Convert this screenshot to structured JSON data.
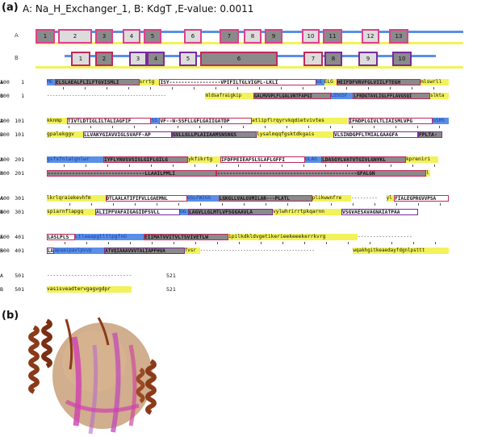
{
  "panel_a": {
    "label": "(a)",
    "title": "A: Na_H_Exchanger_1, B: KdgT ,E-value: 0.0011",
    "track_a_label": "A",
    "track_b_label": "B",
    "helices_a": [
      "1",
      "2",
      "3",
      "4",
      "5",
      "6",
      "7",
      "8",
      "9",
      "10",
      "11",
      "12",
      "13"
    ],
    "helices_b": [
      "1",
      "2",
      "3",
      "4",
      "5",
      "6",
      "7",
      "8",
      "9",
      "10"
    ]
  },
  "alignment": {
    "rows": [
      {
        "a_label": "A",
        "a_start": "1",
        "a_end": "100",
        "b_label": "B",
        "b_start": "1",
        "b_end": "100",
        "a_segments": [
          {
            "cls": "b",
            "t": "ME"
          },
          {
            "cls": "gp",
            "t": "ELSLAEALFLILFTGVISMLI"
          },
          {
            "cls": "y",
            "t": "srrtg"
          },
          {
            "cls": "w",
            "t": "ISY-----------------VPIFILTGLVIGPL-LKLI"
          },
          {
            "cls": "b",
            "t": "GE"
          },
          {
            "cls": "y",
            "t": "ELG"
          },
          {
            "cls": "gp",
            "t": "HEIFDFVRVFGLVIILFTEGH"
          },
          {
            "cls": "y",
            "t": "mlswrll"
          }
        ],
        "b_segments": [
          {
            "cls": "dash",
            "t": "-------------------------------------------"
          },
          {
            "cls": "y",
            "t": "mldsafraigkip"
          },
          {
            "cls": "gp",
            "t": "GALMVVPLFLGALVNTFAPGI"
          },
          {
            "cls": "b",
            "t": "LDSGSF"
          },
          {
            "cls": "gp",
            "t": "LFRDGTAVLIGLFFLAVGSQI"
          },
          {
            "cls": "y",
            "t": "slkta"
          }
        ]
      },
      {
        "a_label": "A",
        "a_start": "101",
        "a_end": "200",
        "b_label": "B",
        "b_start": "101",
        "b_end": "200",
        "a_segments": [
          {
            "cls": "y",
            "t": "kknmp"
          },
          {
            "cls": "w",
            "t": "TIVTLDTIGLILTALIAGFIF"
          },
          {
            "cls": "b",
            "t": "SS"
          },
          {
            "cls": "w",
            "t": "VF--N-SSFLLGFLGAIIGATDP"
          },
          {
            "cls": "y",
            "t": "atlipflrqyrvkqdietvivtes"
          },
          {
            "cls": "w",
            "t": "IFNDPLGIVLTLIAISMLVPG"
          },
          {
            "cls": "b",
            "t": "GSHS"
          }
        ],
        "b_segments": [
          {
            "cls": "y",
            "t": "gpalekggv"
          },
          {
            "cls": "wv",
            "t": "LLVAKYGIAVVIGLSVAFF-AP"
          },
          {
            "cls": "gv",
            "t": "GVLLGLLPLAIIAAMSNSNGS"
          },
          {
            "cls": "y",
            "t": "lysalmqqfgsktdkgais"
          },
          {
            "cls": "wv",
            "t": "VLSINDGPFLTMIALGAAGFA"
          },
          {
            "cls": "gv",
            "t": "FPLTA-"
          }
        ]
      },
      {
        "a_label": "A",
        "a_start": "201",
        "a_end": "300",
        "b_label": "B",
        "b_start": "201",
        "b_end": "300",
        "a_segments": [
          {
            "cls": "b",
            "t": "gsfsfnlalgnlwr"
          },
          {
            "cls": "gp",
            "t": "IYFLYNVSVSISLGIFLGILG"
          },
          {
            "cls": "y",
            "t": "ykfikrtg"
          },
          {
            "cls": "w",
            "t": "IFDFPEIEAFSLSLAFLGFFI"
          },
          {
            "cls": "b",
            "t": "GLAG"
          },
          {
            "cls": "gp",
            "t": "LDASGYLVATVTGIVLGNYKL"
          },
          {
            "cls": "y",
            "t": "kpreniri"
          }
        ],
        "b_segments": [
          {
            "cls": "gp",
            "t": "--------------------------------LLAAILPMLI"
          },
          {
            "cls": "gp",
            "t": "----------------------------------------------GFALGN"
          },
          {
            "cls": "y",
            "t": "l"
          }
        ]
      },
      {
        "a_label": "A",
        "a_start": "301",
        "a_end": "400",
        "b_label": "B",
        "b_start": "301",
        "b_end": "400",
        "a_segments": [
          {
            "cls": "y",
            "t": "lkrlqraiekevhfm"
          },
          {
            "cls": "w",
            "t": "DTLAALATIFIFVLLGAEMNL"
          },
          {
            "cls": "b",
            "t": "GSLFWIGG"
          },
          {
            "cls": "gp",
            "t": "LGKGLLVALGVMILAR---PLATL"
          },
          {
            "cls": "y",
            "t": "plikwwnfre"
          },
          {
            "cls": "dash",
            "t": "---------"
          },
          {
            "cls": "y",
            "t": "yl"
          },
          {
            "cls": "w",
            "t": "FIALEGPRGVVPSA"
          }
        ],
        "b_segments": [
          {
            "cls": "y",
            "t": "spiarnflapgq"
          },
          {
            "cls": "wv",
            "t": "ALIIPFVAFAIGAGIDFSVLL"
          },
          {
            "cls": "b",
            "t": "GG"
          },
          {
            "cls": "gv",
            "t": "LAGVLLGLMTLVFSGGAAVLA"
          },
          {
            "cls": "y",
            "t": "vylwhrirrtpkqarnn"
          },
          {
            "cls": "wv",
            "t": "VSGVAESAVAGNAIATPAA"
          }
        ]
      },
      {
        "a_label": "A",
        "a_start": "401",
        "a_end": "500",
        "b_label": "B",
        "b_start": "401",
        "b_end": "500",
        "a_segments": [
          {
            "cls": "w",
            "t": "LASLPLS"
          },
          {
            "cls": "b",
            "t": "LtlaaapgtltlpgfnG"
          },
          {
            "cls": "gp",
            "t": "EIIMATVVITVLTSVIVETLW"
          },
          {
            "cls": "y",
            "t": "ipilkdkldvgetikerieekeeekerrkvrg"
          },
          {
            "cls": "dash",
            "t": "------------------"
          }
        ],
        "b_segments": [
          {
            "cls": "wv",
            "t": "LA"
          },
          {
            "cls": "b",
            "t": "apaaipavlpvvp"
          },
          {
            "cls": "gv",
            "t": "ATVQIAAAVVVTALIAPFHVA"
          },
          {
            "cls": "y",
            "t": "fvsr"
          },
          {
            "cls": "dash",
            "t": "----------------------------------------"
          },
          {
            "cls": "y",
            "t": "wqakhgitkeaedayfdgnlpsttt"
          }
        ]
      },
      {
        "a_label": "A",
        "a_start": "501",
        "a_end": "521",
        "b_label": "B",
        "b_start": "501",
        "b_end": "521",
        "a_segments": [
          {
            "cls": "dash",
            "t": "----------------------------"
          }
        ],
        "b_segments": [
          {
            "cls": "y",
            "t": "vasisveadtervgagvgdpr"
          }
        ]
      }
    ]
  },
  "panel_b": {
    "label": "(b)"
  },
  "colors": {
    "helix_fill": "#8a8a8a",
    "helix_border_a": "#e0408a",
    "helix_border_b": "#7a2a9a",
    "loop_yellow": "#f2f25a",
    "loop_blue": "#5a8fe6",
    "structure_brown": "#8b3a1a",
    "structure_tan": "#c8a07a",
    "structure_magenta": "#d040b0"
  }
}
